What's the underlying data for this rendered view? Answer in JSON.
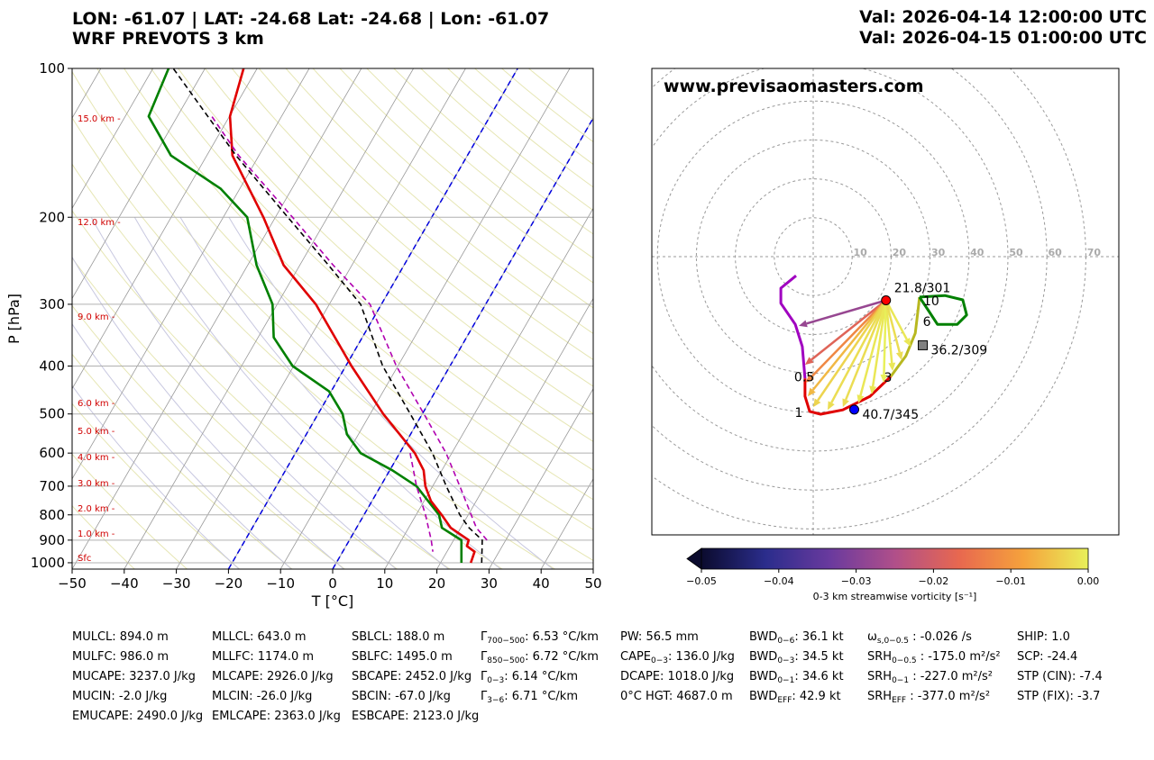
{
  "header": {
    "location": "LON: -61.07 | LAT: -24.68 Lat: -24.68 | Lon: -61.07",
    "model": "WRF PREVOTS 3 km",
    "valid_1": "Val: 2026-04-14 12:00:00 UTC",
    "valid_2": "Val: 2026-04-15 01:00:00 UTC"
  },
  "chart_data": [
    {
      "type": "skewt",
      "xlabel": "T [°C]",
      "ylabel": "P [hPa]",
      "log_y": true,
      "xlim": [
        -50,
        50
      ],
      "xticks": [
        {
          "value": -50,
          "label": "−50"
        },
        {
          "value": -40,
          "label": "−40"
        },
        {
          "value": -30,
          "label": "−30"
        },
        {
          "value": -20,
          "label": "−20"
        },
        {
          "value": -10,
          "label": "−10"
        },
        0,
        10,
        20,
        30,
        40,
        50
      ],
      "ylim": [
        1030,
        100
      ],
      "yticks": [
        100,
        200,
        300,
        400,
        500,
        600,
        700,
        800,
        900,
        1000
      ],
      "grid": true,
      "highlight_isotherms": [
        0,
        -20
      ],
      "highlight_color": "#0000dd",
      "height_labels": [
        "15.0 km -",
        "12.0 km -",
        "9.0 km -",
        "6.0 km -",
        "5.0 km -",
        "4.0 km -",
        "3.0 km -",
        "2.0 km -",
        "1.0 km -",
        "Sfc"
      ],
      "series": [
        {
          "color": "green",
          "style": "solid",
          "p": [
            1000,
            900,
            850,
            800,
            700,
            650,
            600,
            550,
            500,
            450,
            400,
            350,
            300,
            250,
            200,
            175,
            150,
            125,
            100
          ],
          "t": [
            24.0,
            21.5,
            16.4,
            14.4,
            6.9,
            0.5,
            -7.5,
            -12.2,
            -15.3,
            -20.4,
            -30.2,
            -37.0,
            -40.9,
            -48.3,
            -55.4,
            -63.7,
            -76.9,
            -85.5,
            -87.0
          ]
        },
        {
          "color": "#e00000",
          "style": "solid",
          "p": [
            1000,
            950,
            925,
            900,
            850,
            800,
            750,
            700,
            650,
            600,
            500,
            400,
            300,
            250,
            200,
            150,
            125,
            100
          ],
          "t": [
            25.8,
            25.3,
            23.2,
            22.9,
            18.1,
            14.9,
            11.3,
            8.6,
            6.5,
            2.9,
            -7.5,
            -18.9,
            -32.6,
            -43.1,
            -52.3,
            -65.1,
            -69.9,
            -72.6
          ]
        },
        {
          "color": "black",
          "style": "dashed",
          "p": [
            1000,
            900,
            850,
            800,
            700,
            600,
            500,
            400,
            300,
            250,
            200,
            150,
            100
          ],
          "t": [
            27.9,
            25.5,
            21.6,
            18.4,
            12.6,
            6.3,
            -2.3,
            -12.9,
            -24.0,
            -34.5,
            -47.6,
            -64.4,
            -86.1
          ]
        },
        {
          "color": "#b000b0",
          "style": "dashed",
          "p": [
            900,
            850,
            700,
            600,
            500,
            400,
            300,
            250,
            200,
            150,
            125
          ],
          "t": [
            26.4,
            23.0,
            15.2,
            8.9,
            0.3,
            -10.3,
            -22.2,
            -33.6,
            -46.7,
            -63.9,
            -73.4
          ]
        },
        {
          "color": "#b000b0",
          "style": "dashed",
          "p": [
            600,
            700,
            800,
            900,
            950
          ],
          "t": [
            2.0,
            6.9,
            11.8,
            15.7,
            17.3
          ]
        }
      ]
    },
    {
      "type": "hodograph",
      "website": "www.previsaomasters.com",
      "rings": [
        10,
        20,
        30,
        40,
        50,
        60,
        70
      ],
      "series": [
        {
          "color": "#a000c0",
          "u": [
            -4.4,
            -8.3,
            -8.3,
            -4.6,
            -2.8,
            -2.1
          ],
          "v": [
            -4.9,
            -8.1,
            -12.0,
            -17.4,
            -23.1,
            -31.3
          ]
        },
        {
          "color": "#e00000",
          "u": [
            -2.1,
            -2.1,
            -0.9,
            1.9,
            7.6,
            14.6,
            19.9
          ],
          "v": [
            -31.3,
            -35.9,
            -39.8,
            -40.5,
            -39.4,
            -35.9,
            -30.8
          ]
        },
        {
          "color": "#b8b820",
          "u": [
            19.9,
            23.8,
            26.2,
            26.9,
            27.3
          ],
          "v": [
            -30.8,
            -25.5,
            -19.7,
            -13.9,
            -10.4
          ]
        },
        {
          "color": "green",
          "u": [
            27.3,
            33.8,
            38.4,
            39.4,
            37.0,
            31.9,
            29.6,
            27.3
          ],
          "v": [
            -10.4,
            -10.0,
            -11.1,
            -15.0,
            -17.4,
            -17.4,
            -13.9,
            -10.4
          ]
        }
      ],
      "levels": [
        {
          "label": "0.5",
          "u": -2.3,
          "v": -30.9
        },
        {
          "label": "1",
          "u": -3.7,
          "v": -40.1
        },
        {
          "label": "3",
          "u": 19.2,
          "v": -31.0
        },
        {
          "label": "6",
          "u": 29.2,
          "v": -16.7
        },
        {
          "label": "10",
          "u": 30.3,
          "v": -11.3
        }
      ],
      "markers": [
        {
          "label": "21.8/301",
          "speed": 21.8,
          "direction": 301,
          "color": "red",
          "shape": "circle"
        },
        {
          "label": "40.7/345",
          "speed": 40.7,
          "direction": 345,
          "color": "blue",
          "shape": "circle"
        },
        {
          "label": "36.2/309",
          "speed": 36.2,
          "direction": 309,
          "color": "gray",
          "shape": "square"
        }
      ],
      "arrows": {
        "u": [
          -3.7,
          -2.1,
          -1.9,
          -1.4,
          0.0,
          3.7,
          7.6,
          11.6,
          15.0,
          18.1,
          20.4,
          22.7,
          25.0
        ],
        "v": [
          -17.8,
          -27.8,
          -32.4,
          -35.9,
          -38.7,
          -39.4,
          -38.7,
          -37.7,
          -35.4,
          -32.4,
          -29.4,
          -26.6,
          -23.1
        ],
        "vorticity": [
          -0.028,
          -0.018,
          -0.012,
          -0.006,
          -0.003,
          -0.002,
          -0.002,
          -0.001,
          -0.001,
          0.0,
          -0.001,
          -0.002,
          -0.001
        ]
      }
    },
    {
      "type": "colorbar",
      "label": "0-3 km streamwise vorticity [s⁻¹]",
      "xlim": [
        -0.05,
        0.0
      ],
      "xticks": [
        {
          "value": -0.05,
          "label": "−0.05"
        },
        {
          "value": -0.04,
          "label": "−0.04"
        },
        {
          "value": -0.03,
          "label": "−0.03"
        },
        {
          "value": -0.02,
          "label": "−0.02"
        },
        {
          "value": -0.01,
          "label": "−0.01"
        },
        {
          "value": 0.0,
          "label": "0.00"
        }
      ],
      "colors": [
        "#0b0b2e",
        "#2b2d8c",
        "#6a3a9e",
        "#b04f8a",
        "#e8684f",
        "#f5a23c",
        "#e8f05a"
      ]
    }
  ],
  "table": {
    "columns": [
      [
        "MULCL: 894.0 m",
        "MULFC: 986.0 m",
        "MUCAPE: 3237.0 J/kg",
        "MUCIN: -2.0 J/kg",
        "EMUCAPE: 2490.0 J/kg"
      ],
      [
        "MLLCL: 643.0 m",
        "MLLFC: 1174.0 m",
        "MLCAPE: 2926.0 J/kg",
        "MLCIN: -26.0 J/kg",
        "EMLCAPE: 2363.0 J/kg"
      ],
      [
        "SBLCL: 188.0 m",
        "SBLFC: 1495.0 m",
        "SBCAPE: 2452.0 J/kg",
        "SBCIN: -67.0 J/kg",
        "ESBCAPE: 2123.0 J/kg"
      ],
      [
        {
          "main": "Γ",
          "sub": "700−500",
          "rest": ": 6.53 °C/km"
        },
        {
          "main": "Γ",
          "sub": "850−500",
          "rest": ": 6.72 °C/km"
        },
        {
          "main": "Γ",
          "sub": "0−3",
          "rest": ": 6.14 °C/km"
        },
        {
          "main": "Γ",
          "sub": "3−6",
          "rest": ": 6.71 °C/km"
        }
      ],
      [
        "PW: 56.5 mm",
        {
          "main": "CAPE",
          "sub": "0−3",
          "rest": ": 136.0 J/kg"
        },
        "DCAPE: 1018.0 J/kg",
        "0°C HGT: 4687.0 m"
      ],
      [
        {
          "main": "BWD",
          "sub": "0−6",
          "rest": ": 36.1 kt"
        },
        {
          "main": "BWD",
          "sub": "0−3",
          "rest": ": 34.5 kt"
        },
        {
          "main": "BWD",
          "sub": "0−1",
          "rest": ": 34.6 kt"
        },
        {
          "main": "BWD",
          "sub": "EFF",
          "rest": ": 42.9 kt"
        }
      ],
      [
        {
          "main": "ω",
          "sub": "s,0−0.5",
          "rest": " : -0.026 /s"
        },
        {
          "main": "SRH",
          "sub": "0−0.5",
          "rest": " : -175.0 m²/s²"
        },
        {
          "main": "SRH",
          "sub": "0−1",
          "rest": " : -227.0 m²/s²"
        },
        {
          "main": "SRH",
          "sub": "EFF",
          "rest": " : -377.0 m²/s²"
        }
      ],
      [
        "SHIP: 1.0",
        "SCP: -24.4",
        "STP (CIN): -7.4",
        "STP (FIX): -3.7"
      ]
    ]
  }
}
